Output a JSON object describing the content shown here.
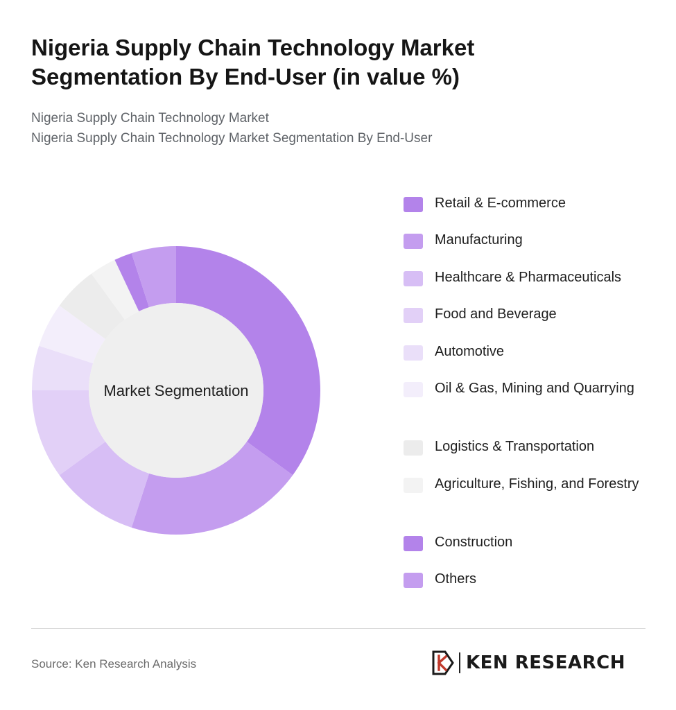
{
  "header": {
    "title_line1": "Nigeria Supply Chain Technology Market",
    "title_line2": "Segmentation By End-User (in value %)",
    "subtitle1": "Nigeria Supply Chain Technology Market",
    "subtitle2": "Nigeria Supply Chain Technology Market Segmentation By End-User"
  },
  "chart_data": {
    "type": "pie",
    "center_label": "Market Segmentation",
    "legend_position": "right",
    "categories": [
      "Retail & E-commerce",
      "Manufacturing",
      "Healthcare & Pharmaceuticals",
      "Food and Beverage",
      "Automotive",
      "Oil & Gas, Mining and Quarrying",
      "Logistics & Transportation",
      "Agriculture, Fishing, and Forestry",
      "Construction",
      "Others"
    ],
    "values": [
      35,
      20,
      10,
      10,
      5,
      5,
      5,
      3,
      2,
      5
    ],
    "colors": [
      "#b383ea",
      "#c49def",
      "#d7bef5",
      "#e2d0f7",
      "#eadff9",
      "#f3eefb",
      "#ececec",
      "#f3f3f3",
      "#b383ea",
      "#c49def"
    ]
  },
  "footer": {
    "source": "Source: Ken Research Analysis",
    "logo_text": "KEN RESEARCH",
    "logo_color": "#1a1a1a"
  }
}
